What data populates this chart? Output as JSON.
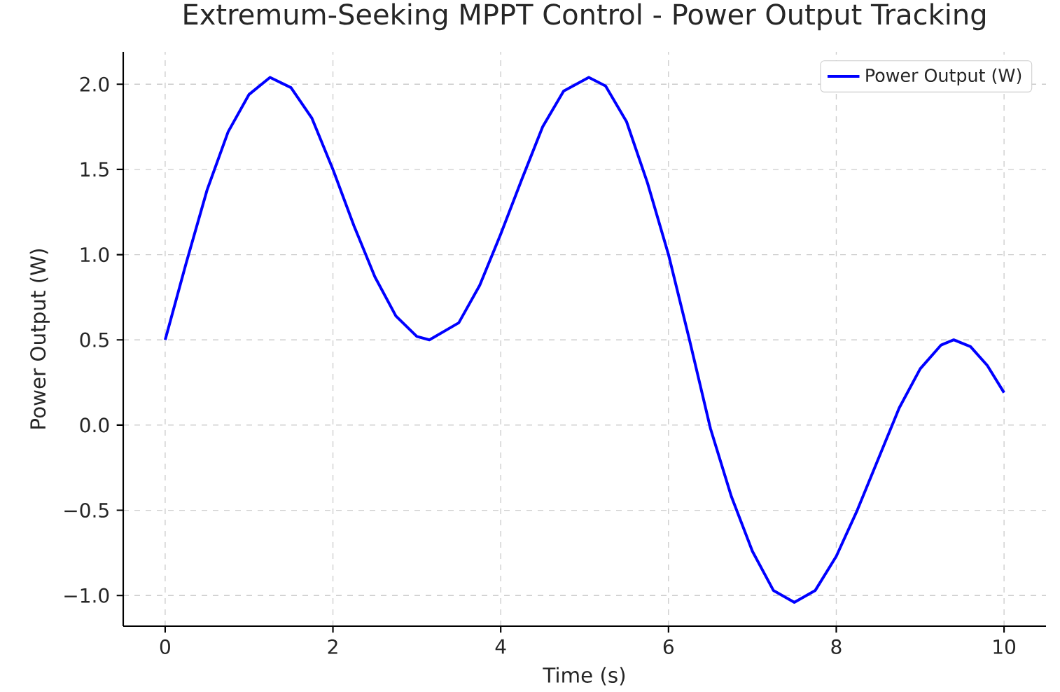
{
  "chart_data": {
    "type": "line",
    "title": "Extremum-Seeking MPPT Control - Power Output Tracking",
    "xlabel": "Time (s)",
    "ylabel": "Power Output (W)",
    "x": [
      0,
      0.25,
      0.5,
      0.75,
      1.0,
      1.25,
      1.5,
      1.75,
      2.0,
      2.25,
      2.5,
      2.75,
      3.0,
      3.15,
      3.5,
      3.75,
      4.0,
      4.25,
      4.5,
      4.75,
      5.05,
      5.25,
      5.5,
      5.75,
      6.0,
      6.25,
      6.5,
      6.75,
      7.0,
      7.25,
      7.5,
      7.75,
      8.0,
      8.25,
      8.5,
      8.75,
      9.0,
      9.25,
      9.4,
      9.6,
      9.8,
      10.0
    ],
    "series": [
      {
        "name": "Power Output (W)",
        "color": "#0000ff",
        "values": [
          0.5,
          0.95,
          1.38,
          1.72,
          1.94,
          2.04,
          1.98,
          1.8,
          1.5,
          1.17,
          0.87,
          0.64,
          0.52,
          0.5,
          0.6,
          0.82,
          1.12,
          1.44,
          1.75,
          1.96,
          2.04,
          1.99,
          1.78,
          1.42,
          1.0,
          0.5,
          -0.02,
          -0.42,
          -0.74,
          -0.97,
          -1.04,
          -0.97,
          -0.77,
          -0.5,
          -0.2,
          0.1,
          0.33,
          0.47,
          0.5,
          0.46,
          0.35,
          0.19
        ]
      }
    ],
    "xlim": [
      -0.5,
      10.5
    ],
    "ylim": [
      -1.18,
      2.19
    ],
    "xticks": [
      0,
      2,
      4,
      6,
      8,
      10
    ],
    "yticks": [
      {
        "value": -1.0,
        "label": "−1.0"
      },
      {
        "value": -0.5,
        "label": "−0.5"
      },
      {
        "value": 0.0,
        "label": "0.0"
      },
      {
        "value": 0.5,
        "label": "0.5"
      },
      {
        "value": 1.0,
        "label": "1.0"
      },
      {
        "value": 1.5,
        "label": "1.5"
      },
      {
        "value": 2.0,
        "label": "2.0"
      }
    ],
    "grid": true,
    "legend": "top right",
    "line_style": "solid",
    "marker": "none"
  }
}
